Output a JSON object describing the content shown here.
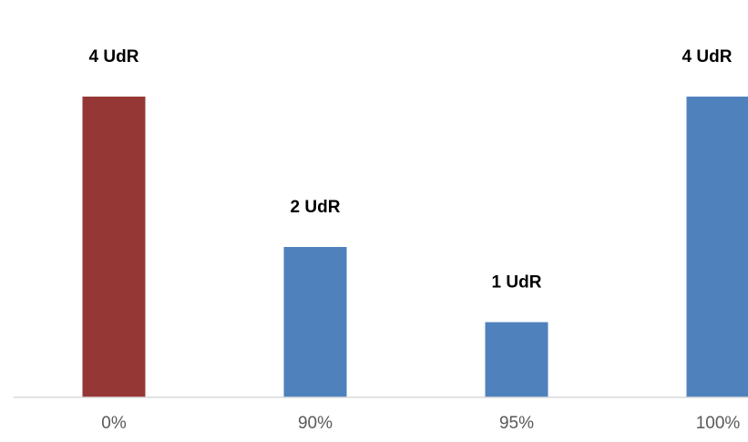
{
  "chart_data": {
    "type": "bar",
    "categories": [
      "0%",
      "90%",
      "95%",
      "100%"
    ],
    "values": [
      4,
      2,
      1,
      4
    ],
    "data_labels": [
      "4 UdR",
      "2 UdR",
      "1 UdR",
      "4 UdR"
    ],
    "bar_colors": [
      "#953735",
      "#4F81BD",
      "#4F81BD",
      "#4F81BD"
    ],
    "axis_color": "#D9D9D9",
    "ylim": [
      0,
      4
    ],
    "grid": false,
    "legend": "none",
    "title": "",
    "xlabel": "",
    "ylabel": ""
  }
}
